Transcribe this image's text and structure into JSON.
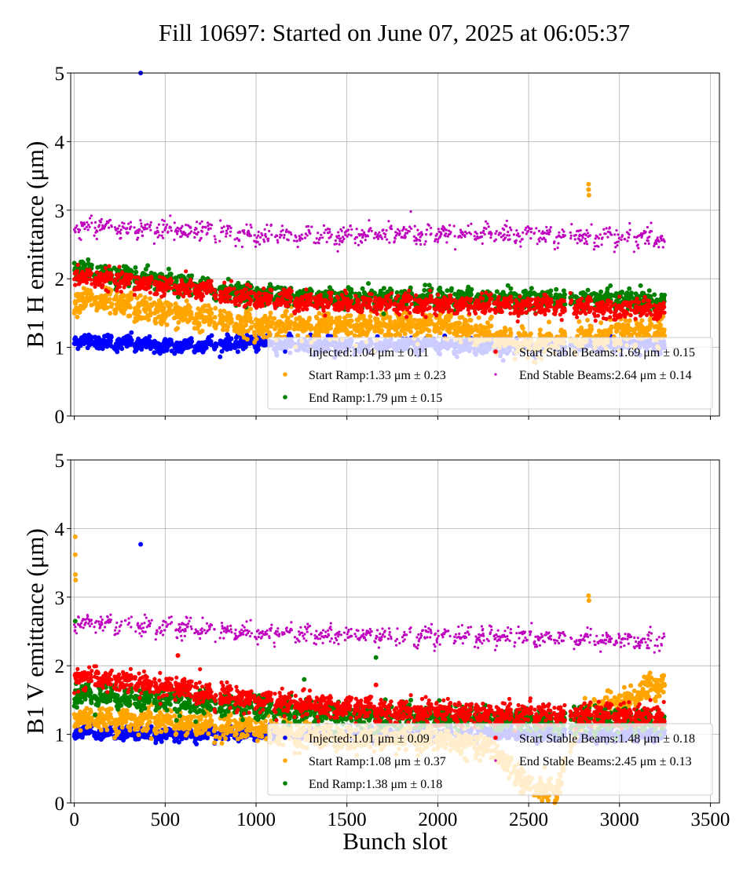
{
  "title": "Fill 10697: Started on June 07, 2025 at 06:05:37",
  "xlabel": "Bunch slot",
  "colors": {
    "injected": "#0000ff",
    "start_ramp": "#ffa500",
    "end_ramp": "#008000",
    "start_stable": "#ff0000",
    "end_stable": "#bf00bf",
    "grid": "#b0b0b0",
    "legend_border": "#cccccc"
  },
  "chart_data": [
    {
      "type": "scatter",
      "ylabel": "B1 H emittance (μm)",
      "xlim": [
        -20,
        3550
      ],
      "ylim": [
        0,
        5
      ],
      "xticks": [
        0,
        500,
        1000,
        1500,
        2000,
        2500,
        3000,
        3500
      ],
      "yticks": [
        0,
        1,
        2,
        3,
        4,
        5
      ],
      "grid": true,
      "legend_placement": "lower-right",
      "series": [
        {
          "key": "injected",
          "name": "Injected:1.04 μm ± 0.11",
          "mean": 1.04,
          "std": 0.11
        },
        {
          "key": "start_ramp",
          "name": "Start Ramp:1.33 μm ± 0.23",
          "mean": 1.33,
          "std": 0.23
        },
        {
          "key": "end_ramp",
          "name": "End Ramp:1.79 μm ± 0.15",
          "mean": 1.79,
          "std": 0.15
        },
        {
          "key": "start_stable",
          "name": "Start Stable Beams:1.69 μm ± 0.15",
          "mean": 1.69,
          "std": 0.15
        },
        {
          "key": "end_stable",
          "name": "End Stable Beams:2.64 μm ± 0.14",
          "mean": 2.64,
          "std": 0.14
        }
      ],
      "trend": {
        "injected": [
          [
            0,
            1.12
          ],
          [
            500,
            1.02
          ],
          [
            1000,
            1.08
          ],
          [
            1500,
            1.02
          ],
          [
            2000,
            1.05
          ],
          [
            2500,
            1.0
          ],
          [
            3000,
            1.05
          ],
          [
            3250,
            1.05
          ]
        ],
        "start_ramp": [
          [
            0,
            1.72
          ],
          [
            500,
            1.52
          ],
          [
            1000,
            1.32
          ],
          [
            1500,
            1.32
          ],
          [
            2000,
            1.35
          ],
          [
            2500,
            1.05
          ],
          [
            3000,
            1.2
          ],
          [
            3250,
            1.3
          ]
        ],
        "end_ramp": [
          [
            0,
            2.15
          ],
          [
            500,
            1.95
          ],
          [
            1000,
            1.78
          ],
          [
            1500,
            1.72
          ],
          [
            2000,
            1.72
          ],
          [
            2500,
            1.7
          ],
          [
            3000,
            1.7
          ],
          [
            3250,
            1.65
          ]
        ],
        "start_stable": [
          [
            0,
            2.05
          ],
          [
            500,
            1.9
          ],
          [
            1000,
            1.72
          ],
          [
            1500,
            1.65
          ],
          [
            2000,
            1.63
          ],
          [
            2500,
            1.62
          ],
          [
            3000,
            1.58
          ],
          [
            3250,
            1.55
          ]
        ],
        "end_stable": [
          [
            0,
            2.75
          ],
          [
            500,
            2.7
          ],
          [
            1000,
            2.62
          ],
          [
            1500,
            2.6
          ],
          [
            2000,
            2.65
          ],
          [
            2500,
            2.62
          ],
          [
            3000,
            2.58
          ],
          [
            3250,
            2.58
          ]
        ]
      },
      "outliers": [
        {
          "series": "injected",
          "x": 365,
          "y": 5.0
        },
        {
          "series": "start_ramp",
          "x": 2830,
          "y": 3.38
        },
        {
          "series": "start_ramp",
          "x": 2830,
          "y": 3.3
        },
        {
          "series": "start_ramp",
          "x": 2832,
          "y": 3.22
        }
      ]
    },
    {
      "type": "scatter",
      "ylabel": "B1 V emittance (μm)",
      "xlabel": "Bunch slot",
      "xlim": [
        -20,
        3550
      ],
      "ylim": [
        0,
        5
      ],
      "xticks": [
        0,
        500,
        1000,
        1500,
        2000,
        2500,
        3000,
        3500
      ],
      "yticks": [
        0,
        1,
        2,
        3,
        4,
        5
      ],
      "grid": true,
      "legend_placement": "lower-right",
      "series": [
        {
          "key": "injected",
          "name": "Injected:1.01 μm ± 0.09",
          "mean": 1.01,
          "std": 0.09
        },
        {
          "key": "start_ramp",
          "name": "Start Ramp:1.08 μm ± 0.37",
          "mean": 1.08,
          "std": 0.37
        },
        {
          "key": "end_ramp",
          "name": "End Ramp:1.38 μm ± 0.18",
          "mean": 1.38,
          "std": 0.18
        },
        {
          "key": "start_stable",
          "name": "Start Stable Beams:1.48 μm ± 0.18",
          "mean": 1.48,
          "std": 0.18
        },
        {
          "key": "end_stable",
          "name": "End Stable Beams:2.45 μm ± 0.13",
          "mean": 2.45,
          "std": 0.13
        }
      ],
      "trend": {
        "injected": [
          [
            0,
            1.05
          ],
          [
            500,
            1.0
          ],
          [
            1000,
            1.02
          ],
          [
            1500,
            1.0
          ],
          [
            2000,
            1.02
          ],
          [
            2500,
            1.0
          ],
          [
            3000,
            1.0
          ],
          [
            3250,
            1.0
          ]
        ],
        "start_ramp": [
          [
            0,
            1.25
          ],
          [
            500,
            1.2
          ],
          [
            1000,
            1.08
          ],
          [
            1500,
            0.95
          ],
          [
            2000,
            0.95
          ],
          [
            2300,
            0.8
          ],
          [
            2500,
            0.25
          ],
          [
            2650,
            0.15
          ],
          [
            2800,
            1.3
          ],
          [
            3000,
            1.45
          ],
          [
            3250,
            1.8
          ]
        ],
        "end_ramp": [
          [
            0,
            1.6
          ],
          [
            500,
            1.5
          ],
          [
            1000,
            1.4
          ],
          [
            1500,
            1.3
          ],
          [
            2000,
            1.25
          ],
          [
            2500,
            1.22
          ],
          [
            3000,
            1.2
          ],
          [
            3250,
            1.2
          ]
        ],
        "start_stable": [
          [
            0,
            1.85
          ],
          [
            500,
            1.7
          ],
          [
            1000,
            1.5
          ],
          [
            1500,
            1.38
          ],
          [
            2000,
            1.32
          ],
          [
            2500,
            1.3
          ],
          [
            3000,
            1.3
          ],
          [
            3250,
            1.28
          ]
        ],
        "end_stable": [
          [
            0,
            2.62
          ],
          [
            500,
            2.55
          ],
          [
            1000,
            2.45
          ],
          [
            1500,
            2.42
          ],
          [
            2000,
            2.42
          ],
          [
            2500,
            2.42
          ],
          [
            3000,
            2.35
          ],
          [
            3250,
            2.35
          ]
        ]
      },
      "outliers": [
        {
          "series": "injected",
          "x": 365,
          "y": 3.77
        },
        {
          "series": "start_ramp",
          "x": 5,
          "y": 3.88
        },
        {
          "series": "start_ramp",
          "x": 5,
          "y": 3.62
        },
        {
          "series": "start_ramp",
          "x": 6,
          "y": 3.33
        },
        {
          "series": "start_ramp",
          "x": 7,
          "y": 3.25
        },
        {
          "series": "start_ramp",
          "x": 2830,
          "y": 3.02
        },
        {
          "series": "start_ramp",
          "x": 2832,
          "y": 2.95
        },
        {
          "series": "end_ramp",
          "x": 5,
          "y": 2.65
        },
        {
          "series": "start_stable",
          "x": 570,
          "y": 2.15
        },
        {
          "series": "start_stable",
          "x": 1660,
          "y": 1.72
        },
        {
          "series": "end_ramp",
          "x": 1660,
          "y": 2.12
        },
        {
          "series": "end_ramp",
          "x": 1265,
          "y": 1.8
        }
      ]
    }
  ]
}
